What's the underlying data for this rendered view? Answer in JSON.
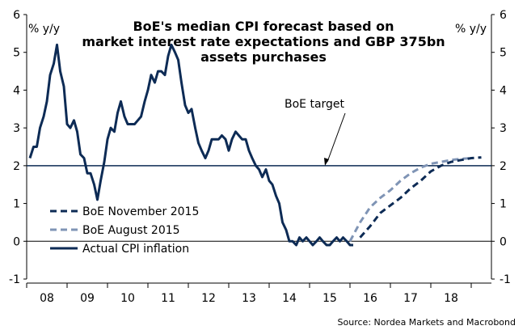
{
  "chart_data": {
    "type": "line",
    "title_lines": [
      "BoE's median CPI forecast based on",
      "market interest rate expectations and GBP 375bn",
      "assets purchases"
    ],
    "left_unit": "% y/y",
    "right_unit": "% y/y",
    "ylim": [
      -1,
      6
    ],
    "y_ticks": [
      "-1",
      "0",
      "1",
      "2",
      "3",
      "4",
      "5",
      "6"
    ],
    "xlim": [
      2007.5,
      2019.0
    ],
    "x_tick_labels": [
      "08",
      "09",
      "10",
      "11",
      "12",
      "13",
      "14",
      "15",
      "16",
      "17",
      "18"
    ],
    "x_tick_positions": [
      2008,
      2009,
      2010,
      2011,
      2012,
      2013,
      2014,
      2015,
      2016,
      2017,
      2018
    ],
    "reference_line": {
      "label": "BoE target",
      "value": 2
    },
    "source": "Source: Nordea Markets and Macrobond",
    "colors": {
      "actual": "#0d2b55",
      "november": "#0d2b55",
      "august": "#7f94b5",
      "target_line": "#0d2b55",
      "zero_line": "#000000"
    },
    "series": [
      {
        "name": "BoE November 2015",
        "style": "dashed",
        "x": [
          2015.75,
          2016.0,
          2016.25,
          2016.5,
          2016.75,
          2017.0,
          2017.25,
          2017.5,
          2017.75,
          2018.0,
          2018.25,
          2018.5,
          2018.75
        ],
        "y": [
          0.1,
          0.4,
          0.75,
          0.95,
          1.15,
          1.4,
          1.6,
          1.85,
          2.0,
          2.1,
          2.15,
          2.2,
          2.22
        ]
      },
      {
        "name": "BoE August 2015",
        "style": "dashed",
        "x": [
          2015.5,
          2015.75,
          2016.0,
          2016.25,
          2016.5,
          2016.75,
          2017.0,
          2017.25,
          2017.5,
          2017.75,
          2018.0,
          2018.25,
          2018.5
        ],
        "y": [
          0.0,
          0.5,
          0.9,
          1.15,
          1.35,
          1.6,
          1.8,
          1.95,
          2.05,
          2.1,
          2.15,
          2.18,
          2.2
        ]
      },
      {
        "name": "Actual CPI inflation",
        "style": "solid",
        "x": [
          2007.58,
          2007.67,
          2007.75,
          2007.83,
          2007.92,
          2008.0,
          2008.08,
          2008.17,
          2008.25,
          2008.33,
          2008.42,
          2008.5,
          2008.58,
          2008.67,
          2008.75,
          2008.83,
          2008.92,
          2009.0,
          2009.08,
          2009.17,
          2009.25,
          2009.33,
          2009.42,
          2009.5,
          2009.58,
          2009.67,
          2009.75,
          2009.83,
          2009.92,
          2010.0,
          2010.08,
          2010.17,
          2010.25,
          2010.33,
          2010.42,
          2010.5,
          2010.58,
          2010.67,
          2010.75,
          2010.83,
          2010.92,
          2011.0,
          2011.08,
          2011.17,
          2011.25,
          2011.33,
          2011.42,
          2011.5,
          2011.58,
          2011.67,
          2011.75,
          2011.83,
          2011.92,
          2012.0,
          2012.08,
          2012.17,
          2012.25,
          2012.33,
          2012.42,
          2012.5,
          2012.58,
          2012.67,
          2012.75,
          2012.83,
          2012.92,
          2013.0,
          2013.08,
          2013.17,
          2013.25,
          2013.33,
          2013.42,
          2013.5,
          2013.58,
          2013.67,
          2013.75,
          2013.83,
          2013.92,
          2014.0,
          2014.08,
          2014.17,
          2014.25,
          2014.33,
          2014.42,
          2014.5,
          2014.58,
          2014.67,
          2014.75,
          2014.83,
          2014.92,
          2015.0,
          2015.08,
          2015.17,
          2015.25,
          2015.33,
          2015.42,
          2015.5,
          2015.58
        ],
        "y": [
          2.2,
          2.5,
          2.5,
          3.0,
          3.3,
          3.7,
          4.4,
          4.7,
          5.2,
          4.5,
          4.1,
          3.1,
          3.0,
          3.2,
          2.9,
          2.3,
          2.2,
          1.8,
          1.8,
          1.5,
          1.1,
          1.6,
          2.1,
          2.7,
          3.0,
          2.9,
          3.4,
          3.7,
          3.3,
          3.1,
          3.1,
          3.1,
          3.2,
          3.3,
          3.7,
          4.0,
          4.4,
          4.2,
          4.5,
          4.5,
          4.4,
          4.9,
          5.2,
          5.0,
          4.8,
          4.2,
          3.6,
          3.4,
          3.5,
          3.0,
          2.6,
          2.4,
          2.2,
          2.4,
          2.7,
          2.7,
          2.7,
          2.8,
          2.7,
          2.4,
          2.7,
          2.9,
          2.8,
          2.7,
          2.7,
          2.4,
          2.2,
          2.0,
          1.9,
          1.7,
          1.9,
          1.6,
          1.5,
          1.2,
          1.0,
          0.5,
          0.3,
          0.0,
          0.0,
          -0.1,
          0.1,
          0.0,
          0.1,
          0.0,
          -0.1,
          0.0,
          0.1,
          0.0,
          -0.1,
          -0.1,
          0.0,
          0.1,
          0.0,
          0.1,
          0.0,
          -0.1,
          -0.1
        ]
      }
    ]
  }
}
